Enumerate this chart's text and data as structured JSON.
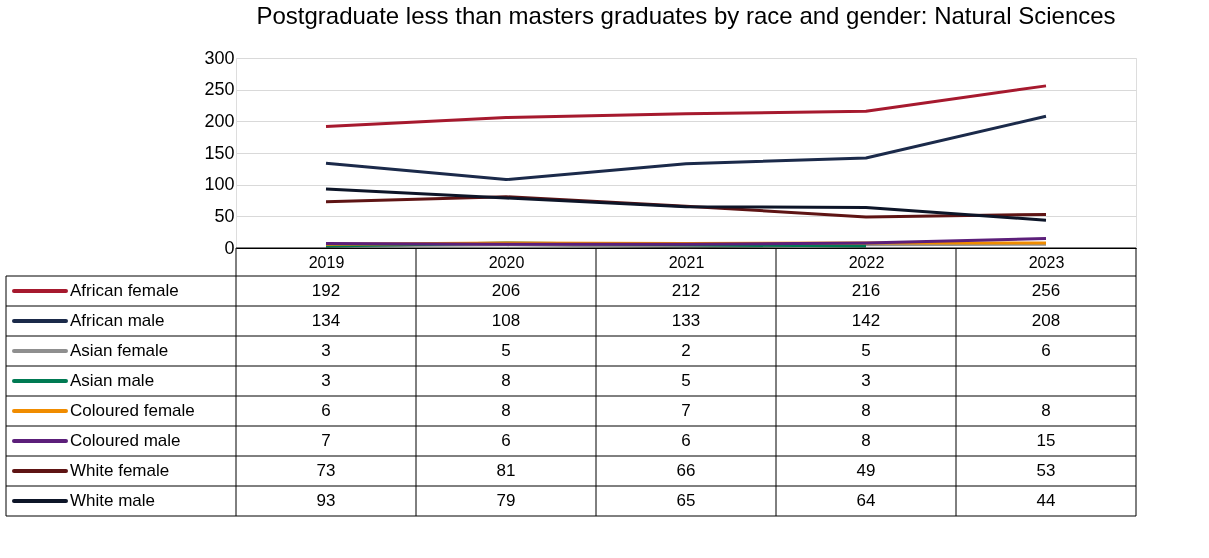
{
  "chart_data": {
    "type": "line",
    "title": "Postgraduate less than masters graduates by race and gender: Natural Sciences",
    "categories": [
      "2019",
      "2020",
      "2021",
      "2022",
      "2023"
    ],
    "ylim": [
      0,
      300
    ],
    "yticks": [
      0,
      50,
      100,
      150,
      200,
      250,
      300
    ],
    "grid": "y",
    "legend": "bottom",
    "data_labels": true,
    "marker": "none",
    "line_style": "solid",
    "series": [
      {
        "name": "African female",
        "color": "#a6192e",
        "values": [
          192,
          206,
          212,
          216,
          256
        ]
      },
      {
        "name": "African male",
        "color": "#1b2a4a",
        "values": [
          134,
          108,
          133,
          142,
          208
        ]
      },
      {
        "name": "Asian female",
        "color": "#8f8f8f",
        "values": [
          3,
          5,
          2,
          5,
          6
        ]
      },
      {
        "name": "Asian male",
        "color": "#007a53",
        "values": [
          3,
          8,
          5,
          3,
          null
        ]
      },
      {
        "name": "Coloured female",
        "color": "#f08c00",
        "values": [
          6,
          8,
          7,
          8,
          8
        ]
      },
      {
        "name": "Coloured male",
        "color": "#5c1f7a",
        "values": [
          7,
          6,
          6,
          8,
          15
        ]
      },
      {
        "name": "White female",
        "color": "#5e1414",
        "values": [
          73,
          81,
          66,
          49,
          53
        ]
      },
      {
        "name": "White male",
        "color": "#0d1528",
        "values": [
          93,
          79,
          65,
          64,
          44
        ]
      }
    ]
  }
}
